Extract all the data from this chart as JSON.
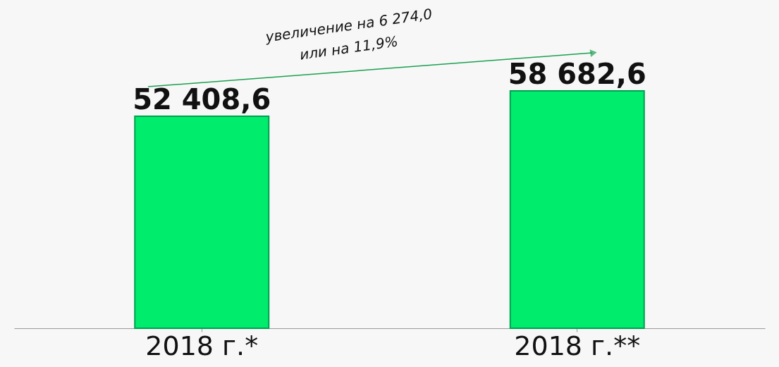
{
  "chart_data": {
    "type": "bar",
    "categories": [
      "2018 г.*",
      "2018 г.**"
    ],
    "values": [
      52408.6,
      58682.6
    ],
    "color": "#00ec6c",
    "value_labels": [
      "52 408,6",
      "58 682,6"
    ],
    "grid": false,
    "tick_labels": "x",
    "annotations": [
      "увеличение на 6 274,0",
      "или на 11,9%"
    ]
  }
}
